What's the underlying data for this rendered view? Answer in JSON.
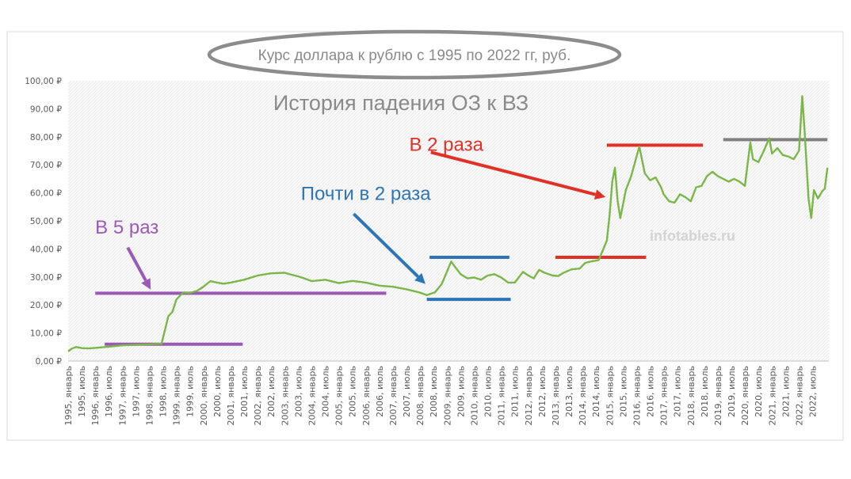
{
  "chart_data": {
    "type": "line",
    "title": "Курс доллара к рублю с 1995 по 2022 гг, руб.",
    "subtitle": "История падения ОЗ к ВЗ",
    "watermark": "infotables.ru",
    "ylim": [
      0,
      100
    ],
    "yticks": [
      {
        "value": 0,
        "label": "0,00 ₽"
      },
      {
        "value": 10,
        "label": "10,00 ₽"
      },
      {
        "value": 20,
        "label": "20,00 ₽"
      },
      {
        "value": 30,
        "label": "30,00 ₽"
      },
      {
        "value": 40,
        "label": "40,00 ₽"
      },
      {
        "value": 50,
        "label": "50,00 ₽"
      },
      {
        "value": 60,
        "label": "60,00 ₽"
      },
      {
        "value": 70,
        "label": "70,00 ₽"
      },
      {
        "value": 80,
        "label": "80,00 ₽"
      },
      {
        "value": 90,
        "label": "90,00 ₽"
      },
      {
        "value": 100,
        "label": "100,00 ₽"
      }
    ],
    "xticks": [
      "1995, январь",
      "1995, июль",
      "1996, январь",
      "1996, июль",
      "1997, январь",
      "1997, июль",
      "1998, январь",
      "1998, июль",
      "1999, январь",
      "1999, июль",
      "2000, январь",
      "2000, июль",
      "2001, январь",
      "2001, июль",
      "2002, январь",
      "2002, июль",
      "2003, январь",
      "2003, июль",
      "2004, январь",
      "2004, июль",
      "2005, январь",
      "2005, июль",
      "2006, январь",
      "2006, июль",
      "2007, январь",
      "2007, июль",
      "2008, январь",
      "2008, июль",
      "2009, январь",
      "2009, июль",
      "2010, январь",
      "2010, июль",
      "2011, январь",
      "2011, июль",
      "2012, январь",
      "2012, июль",
      "2013, январь",
      "2013, июль",
      "2014, январь",
      "2014, июль",
      "2015, январь",
      "2015, июль",
      "2016, январь",
      "2016, июль",
      "2017, январь",
      "2017, июль",
      "2018, январь",
      "2018, июль",
      "2019, январь",
      "2019, июль",
      "2020, январь",
      "2020, июль",
      "2021, январь",
      "2021, июль",
      "2022, январь",
      "2022, июль"
    ],
    "series": [
      {
        "color": "#7ab648",
        "points": [
          [
            1995.0,
            3.5
          ],
          [
            1995.15,
            4.5
          ],
          [
            1995.3,
            5.0
          ],
          [
            1995.5,
            4.6
          ],
          [
            1995.75,
            4.5
          ],
          [
            1996.0,
            4.7
          ],
          [
            1996.5,
            5.1
          ],
          [
            1997.0,
            5.6
          ],
          [
            1997.5,
            5.8
          ],
          [
            1998.0,
            6.0
          ],
          [
            1998.45,
            6.2
          ],
          [
            1998.6,
            12.0
          ],
          [
            1998.7,
            16.0
          ],
          [
            1998.85,
            17.5
          ],
          [
            1999.0,
            22.0
          ],
          [
            1999.25,
            24.5
          ],
          [
            1999.5,
            24.3
          ],
          [
            1999.75,
            25.0
          ],
          [
            2000.0,
            26.5
          ],
          [
            2000.25,
            28.5
          ],
          [
            2000.5,
            28.0
          ],
          [
            2000.75,
            27.6
          ],
          [
            2001.0,
            28.0
          ],
          [
            2001.5,
            29.0
          ],
          [
            2002.0,
            30.5
          ],
          [
            2002.5,
            31.3
          ],
          [
            2003.0,
            31.5
          ],
          [
            2003.25,
            30.8
          ],
          [
            2003.5,
            30.2
          ],
          [
            2003.75,
            29.4
          ],
          [
            2004.0,
            28.5
          ],
          [
            2004.5,
            29.0
          ],
          [
            2005.0,
            27.8
          ],
          [
            2005.5,
            28.6
          ],
          [
            2006.0,
            28.0
          ],
          [
            2006.5,
            26.9
          ],
          [
            2007.0,
            26.5
          ],
          [
            2007.5,
            25.6
          ],
          [
            2008.0,
            24.4
          ],
          [
            2008.25,
            23.5
          ],
          [
            2008.55,
            24.5
          ],
          [
            2008.8,
            27.5
          ],
          [
            2009.0,
            32.0
          ],
          [
            2009.15,
            35.5
          ],
          [
            2009.3,
            33.5
          ],
          [
            2009.5,
            31.0
          ],
          [
            2009.75,
            29.5
          ],
          [
            2010.0,
            29.8
          ],
          [
            2010.25,
            29.0
          ],
          [
            2010.5,
            30.5
          ],
          [
            2010.75,
            31.0
          ],
          [
            2011.0,
            29.8
          ],
          [
            2011.25,
            28.0
          ],
          [
            2011.5,
            28.0
          ],
          [
            2011.8,
            31.8
          ],
          [
            2012.0,
            30.5
          ],
          [
            2012.2,
            29.5
          ],
          [
            2012.4,
            32.5
          ],
          [
            2012.6,
            31.5
          ],
          [
            2012.9,
            30.5
          ],
          [
            2013.1,
            30.3
          ],
          [
            2013.3,
            31.5
          ],
          [
            2013.6,
            32.7
          ],
          [
            2013.9,
            33.0
          ],
          [
            2014.1,
            35.0
          ],
          [
            2014.3,
            35.5
          ],
          [
            2014.6,
            36.0
          ],
          [
            2014.9,
            43.0
          ],
          [
            2015.0,
            52.0
          ],
          [
            2015.1,
            64.0
          ],
          [
            2015.2,
            69.0
          ],
          [
            2015.3,
            57.0
          ],
          [
            2015.4,
            51.0
          ],
          [
            2015.6,
            61.0
          ],
          [
            2015.8,
            66.0
          ],
          [
            2016.0,
            73.0
          ],
          [
            2016.1,
            76.5
          ],
          [
            2016.3,
            67.0
          ],
          [
            2016.5,
            64.5
          ],
          [
            2016.7,
            65.5
          ],
          [
            2016.9,
            62.0
          ],
          [
            2017.0,
            59.5
          ],
          [
            2017.2,
            57.0
          ],
          [
            2017.4,
            56.5
          ],
          [
            2017.6,
            59.5
          ],
          [
            2017.8,
            58.5
          ],
          [
            2018.0,
            57.0
          ],
          [
            2018.2,
            62.0
          ],
          [
            2018.4,
            62.5
          ],
          [
            2018.6,
            66.0
          ],
          [
            2018.8,
            67.5
          ],
          [
            2019.0,
            66.0
          ],
          [
            2019.2,
            65.0
          ],
          [
            2019.4,
            64.0
          ],
          [
            2019.6,
            65.0
          ],
          [
            2019.8,
            64.0
          ],
          [
            2020.0,
            62.5
          ],
          [
            2020.2,
            78.0
          ],
          [
            2020.3,
            72.0
          ],
          [
            2020.5,
            71.0
          ],
          [
            2020.7,
            75.0
          ],
          [
            2020.9,
            79.5
          ],
          [
            2021.0,
            74.0
          ],
          [
            2021.2,
            76.0
          ],
          [
            2021.4,
            73.5
          ],
          [
            2021.6,
            73.0
          ],
          [
            2021.8,
            72.0
          ],
          [
            2022.0,
            75.0
          ],
          [
            2022.12,
            94.5
          ],
          [
            2022.22,
            80.0
          ],
          [
            2022.35,
            58.0
          ],
          [
            2022.45,
            51.0
          ],
          [
            2022.55,
            61.0
          ],
          [
            2022.7,
            58.0
          ],
          [
            2022.85,
            60.5
          ],
          [
            2022.95,
            61.5
          ],
          [
            2023.05,
            69.0
          ]
        ]
      }
    ],
    "hlines": [
      {
        "color": "#9b59b6",
        "y": 6.0,
        "x0": 1996.35,
        "x1": 2001.45
      },
      {
        "color": "#9b59b6",
        "y": 24.2,
        "x0": 1996.0,
        "x1": 2006.75
      },
      {
        "color": "#2e75b6",
        "y": 37.0,
        "x0": 2008.35,
        "x1": 2011.3
      },
      {
        "color": "#2e75b6",
        "y": 22.0,
        "x0": 2008.25,
        "x1": 2011.35
      },
      {
        "color": "#e03127",
        "y": 77.0,
        "x0": 2014.9,
        "x1": 2018.45
      },
      {
        "color": "#e03127",
        "y": 37.0,
        "x0": 2013.0,
        "x1": 2016.35
      },
      {
        "color": "#808080",
        "y": 79.0,
        "x0": 2019.2,
        "x1": 2023.05
      }
    ],
    "annotations": [
      {
        "text": "В 5 раз",
        "color": "#9b59b6",
        "tx": 1996.0,
        "ty": 45.5,
        "ax0": 1997.2,
        "ay0": 40.5,
        "ax1": 1998.05,
        "ay1": 25.5
      },
      {
        "text": "Почти в 2 раза",
        "color": "#2e75b6",
        "tx": 2003.6,
        "ty": 57.5,
        "ax0": 2005.55,
        "ay0": 52.5,
        "ax1": 2008.2,
        "ay1": 27.5
      },
      {
        "text": "В 2 раза",
        "color": "#e03127",
        "tx": 2007.6,
        "ty": 75.0,
        "ax0": 2008.4,
        "ay0": 74.5,
        "ax1": 2014.85,
        "ay1": 58.5
      }
    ],
    "grid": false,
    "plot_background": "hatched"
  }
}
